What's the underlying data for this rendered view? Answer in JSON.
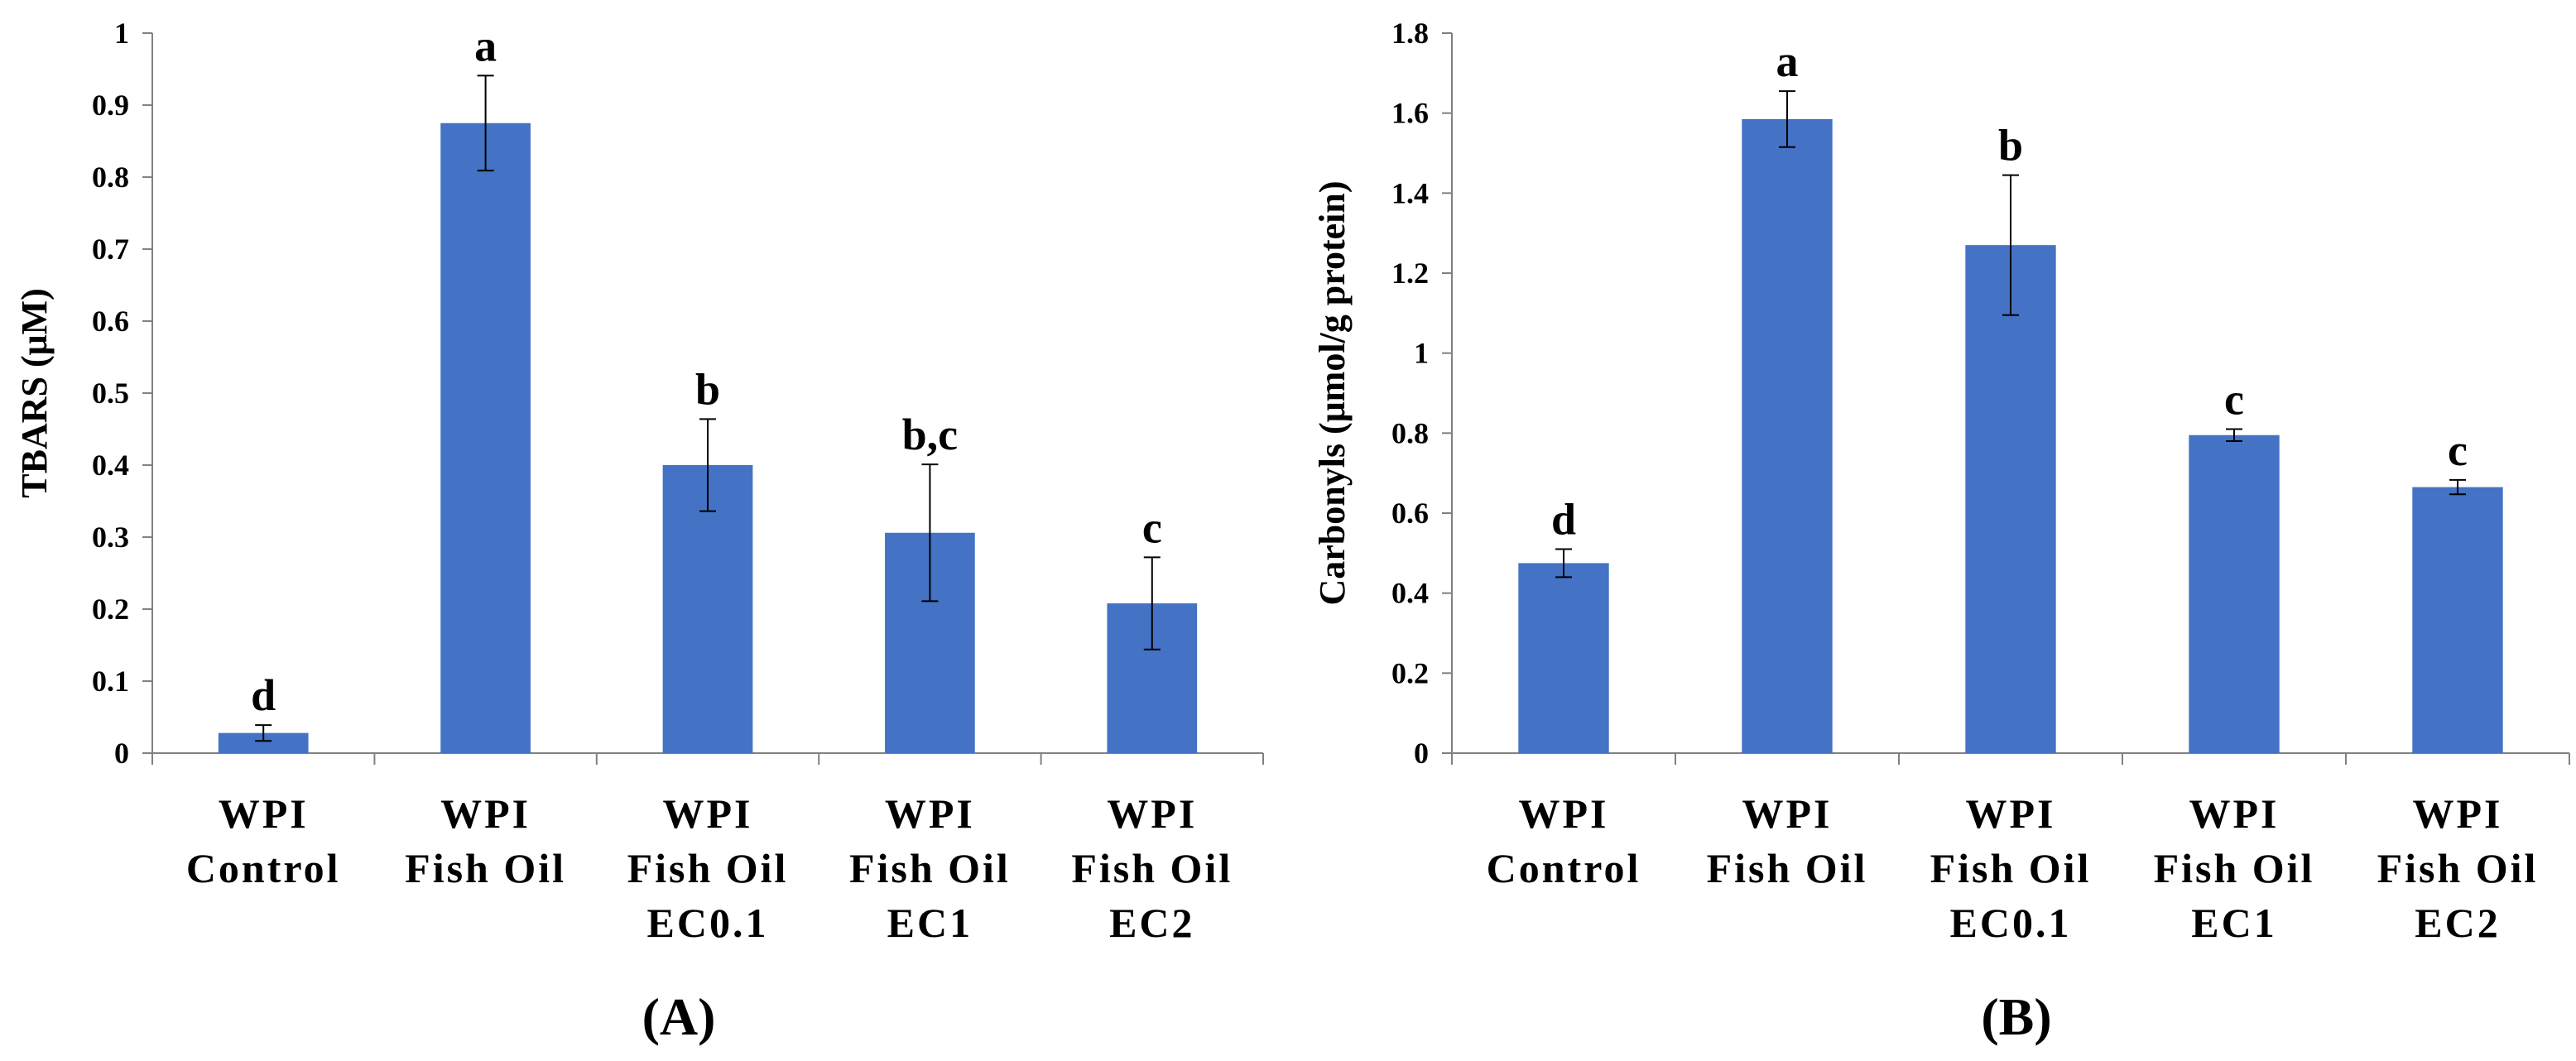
{
  "chart_data": [
    {
      "type": "bar",
      "panel_label": "(A)",
      "ylabel": "TBARS (μM)",
      "ylim": [
        0,
        1
      ],
      "yticks": [
        "0",
        "0.1",
        "0.2",
        "0.3",
        "0.4",
        "0.5",
        "0.6",
        "0.7",
        "0.8",
        "0.9",
        "1"
      ],
      "ytick_values": [
        0,
        0.1,
        0.2,
        0.3,
        0.4,
        0.5,
        0.6,
        0.7,
        0.8,
        0.9,
        1
      ],
      "categories": [
        [
          "WPI",
          "Control"
        ],
        [
          "WPI",
          "Fish Oil"
        ],
        [
          "WPI",
          "Fish Oil",
          "EC0.1"
        ],
        [
          "WPI",
          "Fish Oil",
          "EC1"
        ],
        [
          "WPI",
          "Fish Oil",
          "EC2"
        ]
      ],
      "values": [
        0.028,
        0.875,
        0.4,
        0.306,
        0.208
      ],
      "errors": [
        0.011,
        0.066,
        0.064,
        0.095,
        0.064
      ],
      "significance": [
        "d",
        "a",
        "b",
        "b,c",
        "c"
      ],
      "bar_color": "#4472C4"
    },
    {
      "type": "bar",
      "panel_label": "(B)",
      "ylabel": "Carbonyls (μmol/g protein)",
      "ylim": [
        0,
        1.8
      ],
      "yticks": [
        "0",
        "0.2",
        "0.4",
        "0.6",
        "0.8",
        "1",
        "1.2",
        "1.4",
        "1.6",
        "1.8"
      ],
      "ytick_values": [
        0,
        0.2,
        0.4,
        0.6,
        0.8,
        1,
        1.2,
        1.4,
        1.6,
        1.8
      ],
      "categories": [
        [
          "WPI",
          "Control"
        ],
        [
          "WPI",
          "Fish Oil"
        ],
        [
          "WPI",
          "Fish Oil",
          "EC0.1"
        ],
        [
          "WPI",
          "Fish Oil",
          "EC1"
        ],
        [
          "WPI",
          "Fish Oil",
          "EC2"
        ]
      ],
      "values": [
        0.475,
        1.585,
        1.27,
        0.795,
        0.665
      ],
      "errors": [
        0.035,
        0.07,
        0.175,
        0.015,
        0.018
      ],
      "significance": [
        "d",
        "a",
        "b",
        "c",
        "c"
      ],
      "bar_color": "#4472C4"
    }
  ]
}
